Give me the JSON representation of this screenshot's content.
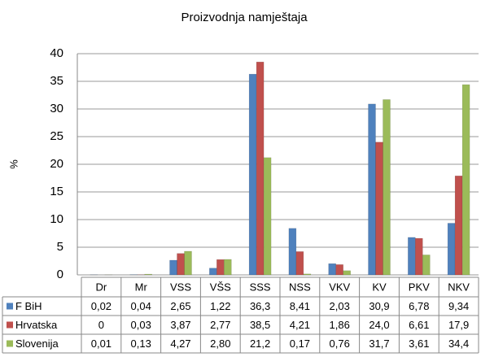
{
  "chart_data": {
    "type": "bar",
    "title": "Proizvodnja namještaja",
    "y_label": "%",
    "categories": [
      "Dr",
      "Mr",
      "VSS",
      "VŠS",
      "SSS",
      "NSS",
      "VKV",
      "KV",
      "PKV",
      "NKV"
    ],
    "series": [
      {
        "name": "F BiH",
        "color": "#4f81bd",
        "values": [
          0.02,
          0.04,
          2.65,
          1.22,
          36.3,
          8.41,
          2.03,
          30.9,
          6.78,
          9.34
        ],
        "value_labels": [
          "0,02",
          "0,04",
          "2,65",
          "1,22",
          "36,3",
          "8,41",
          "2,03",
          "30,9",
          "6,78",
          "9,34"
        ]
      },
      {
        "name": "Hrvatska",
        "color": "#c0504d",
        "values": [
          0,
          0.03,
          3.87,
          2.77,
          38.5,
          4.21,
          1.86,
          24,
          6.61,
          17.9
        ],
        "value_labels": [
          "0",
          "0,03",
          "3,87",
          "2,77",
          "38,5",
          "4,21",
          "1,86",
          "24,0",
          "6,61",
          "17,9"
        ]
      },
      {
        "name": "Slovenija",
        "color": "#9bbb59",
        "values": [
          0.01,
          0.13,
          4.27,
          2.8,
          21.2,
          0.17,
          0.76,
          31.7,
          3.61,
          34.4
        ],
        "value_labels": [
          "0,01",
          "0,13",
          "4,27",
          "2,80",
          "21,2",
          "0,17",
          "0,76",
          "31,7",
          "3,61",
          "34,4"
        ]
      }
    ],
    "ylim": [
      0,
      40
    ],
    "yticks": [
      0,
      5,
      10,
      15,
      20,
      25,
      30,
      35,
      40
    ],
    "grid": true
  }
}
